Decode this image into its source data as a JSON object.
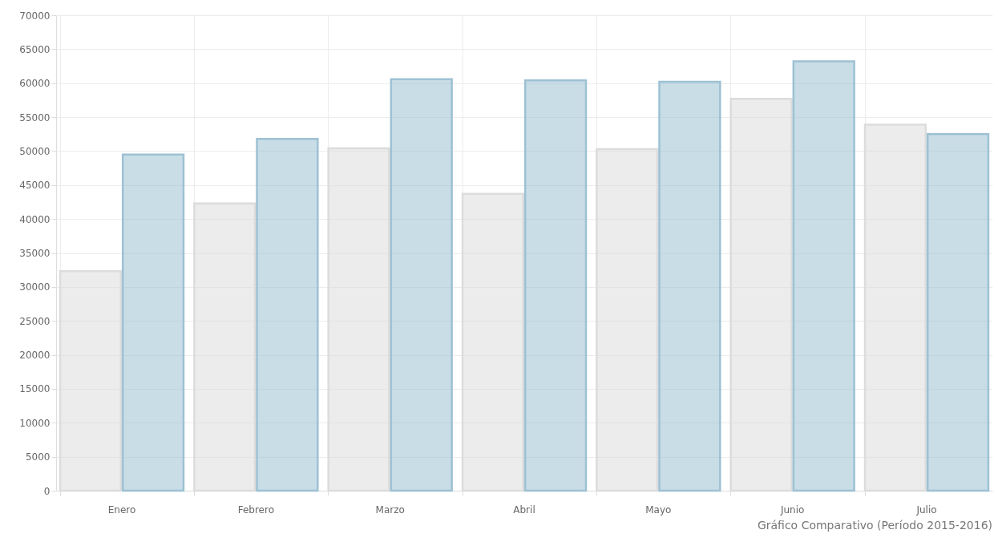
{
  "chart_data": {
    "type": "bar",
    "categories": [
      "Enero",
      "Febrero",
      "Marzo",
      "Abril",
      "Mayo",
      "Junio",
      "Julio"
    ],
    "series": [
      {
        "color": "#dcdcdc",
        "values": [
          32300,
          42300,
          50400,
          43700,
          50300,
          57700,
          53900
        ]
      },
      {
        "color": "#9dc1d3",
        "values": [
          49500,
          51800,
          60600,
          60400,
          60200,
          63200,
          52500
        ]
      }
    ],
    "ylim": [
      0,
      70000
    ],
    "yticks": [
      0,
      5000,
      10000,
      15000,
      20000,
      25000,
      30000,
      35000,
      40000,
      45000,
      50000,
      55000,
      60000,
      65000,
      70000
    ],
    "grid": true,
    "annotations": [
      "Gráfico Comparativo (Período 2015-2016)"
    ]
  }
}
